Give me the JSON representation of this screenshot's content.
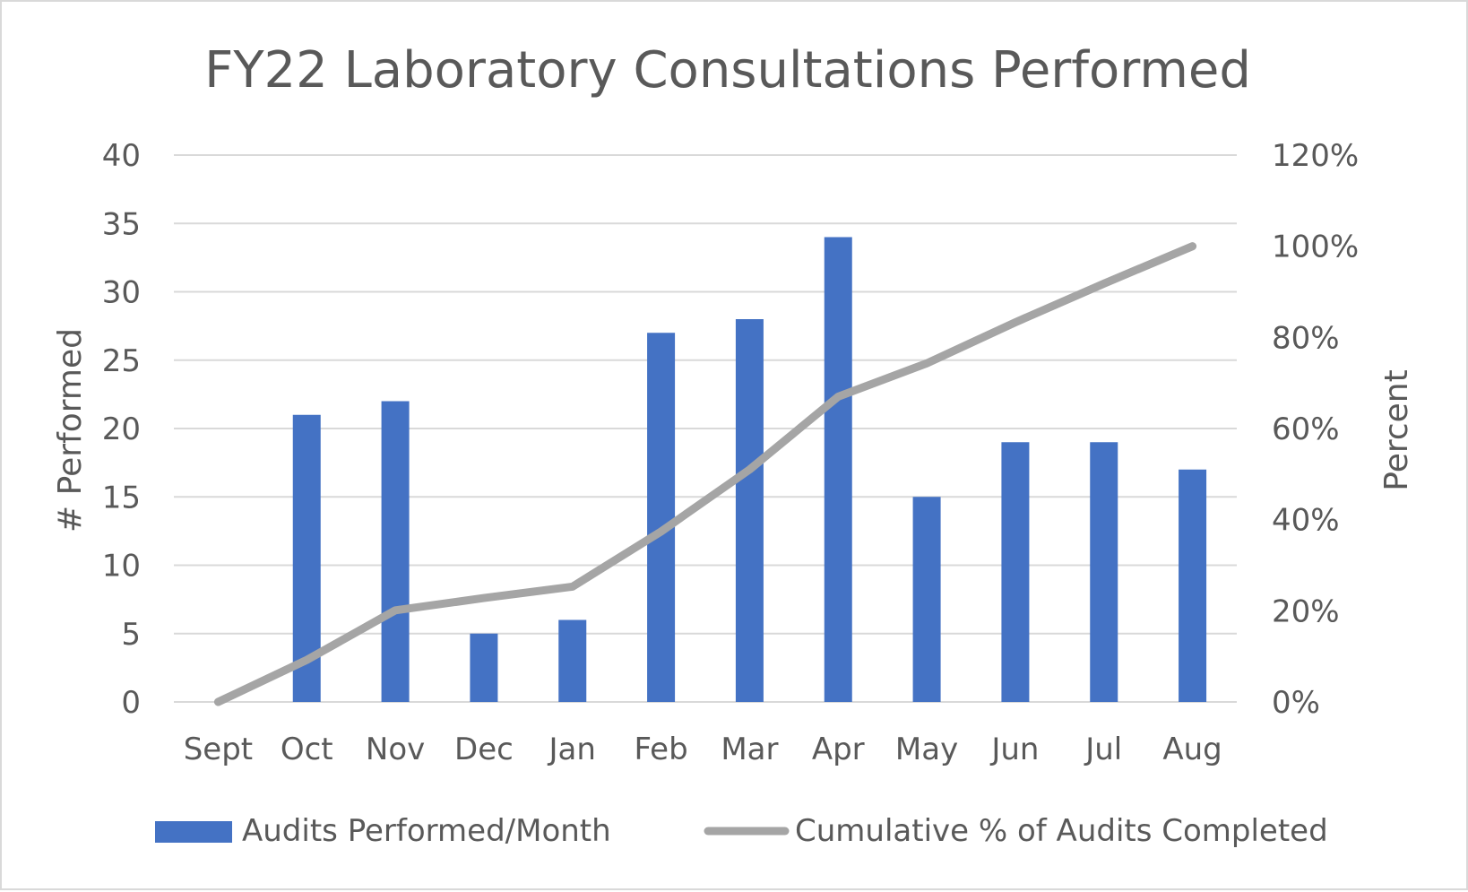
{
  "chart_data": {
    "type": "bar",
    "title": "FY22 Laboratory Consultations Performed",
    "categories": [
      "Sept",
      "Oct",
      "Nov",
      "Dec",
      "Jan",
      "Feb",
      "Mar",
      "Apr",
      "May",
      "Jun",
      "Jul",
      "Aug"
    ],
    "series": [
      {
        "name": "Audits Performed/Month",
        "type": "bar",
        "axis": "left",
        "color": "#4472c4",
        "values": [
          0,
          21,
          22,
          5,
          6,
          27,
          28,
          34,
          15,
          19,
          19,
          17
        ]
      },
      {
        "name": "Cumulative % of Audits Completed",
        "type": "line",
        "axis": "right",
        "color": "#a5a5a5",
        "values": [
          0,
          9.2,
          20.1,
          22.8,
          25.3,
          37.4,
          51.0,
          67.0,
          74.3,
          83.3,
          91.8,
          100
        ]
      }
    ],
    "ylabel": "# Performed",
    "ylim": [
      0,
      40
    ],
    "yticks": [
      "0",
      "5",
      "10",
      "15",
      "20",
      "25",
      "30",
      "35",
      "40"
    ],
    "y2label": "Percent",
    "y2lim": [
      0,
      120
    ],
    "y2ticks": [
      "0%",
      "20%",
      "40%",
      "60%",
      "80%",
      "100%",
      "120%"
    ],
    "grid": true,
    "legend_position": "bottom"
  }
}
